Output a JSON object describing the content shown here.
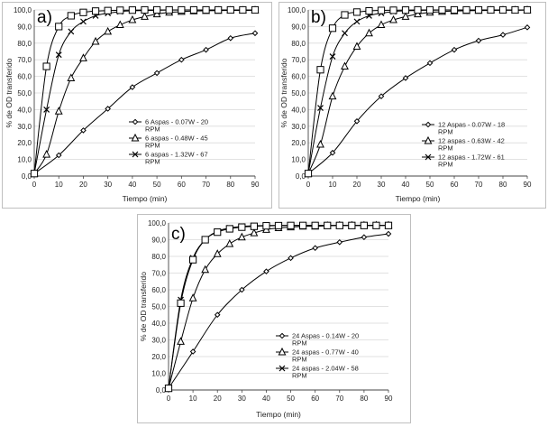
{
  "chart_data": [
    {
      "type": "line",
      "panel_label": "a)",
      "xlabel": "Tiempo (min)",
      "ylabel": "% de OD transferido",
      "x_ticks": [
        "0",
        "10",
        "20",
        "30",
        "40",
        "50",
        "60",
        "70",
        "80",
        "90"
      ],
      "y_ticks": [
        "0,0",
        "10,0",
        "20,0",
        "30,0",
        "40,0",
        "50,0",
        "60,0",
        "70,0",
        "80,0",
        "90,0",
        "100,0"
      ],
      "xlim": [
        0,
        90
      ],
      "ylim": [
        0,
        100
      ],
      "legend_position": "right",
      "series": [
        {
          "name": "6 Aspas - 0.07W - 20 RPM",
          "marker": "diamond",
          "x": [
            0,
            10,
            20,
            30,
            40,
            50,
            60,
            70,
            80,
            90
          ],
          "y": [
            1.5,
            12.5,
            27.5,
            40.5,
            53.5,
            62,
            70,
            76,
            83,
            86
          ]
        },
        {
          "name": "6 aspas - 0.48W - 45 RPM",
          "marker": "triangle",
          "x": [
            0,
            5,
            10,
            15,
            20,
            25,
            30,
            35,
            40,
            45,
            50,
            55,
            60,
            65,
            70,
            75,
            80,
            85,
            90
          ],
          "y": [
            1.5,
            13,
            39,
            59,
            71,
            81,
            87,
            91,
            94,
            96,
            97.5,
            98.5,
            99,
            99.3,
            99.5,
            99.6,
            99.7,
            99.7,
            99.8
          ]
        },
        {
          "name": "6 aspas - 1.32W - 67 RPM",
          "marker": "x",
          "x": [
            0,
            5,
            10,
            15,
            20,
            25,
            30,
            35,
            40,
            45,
            50,
            55,
            60,
            65,
            70,
            75,
            80,
            85,
            90
          ],
          "y": [
            1.5,
            40,
            73,
            87,
            93,
            96.5,
            98,
            99,
            99.5,
            99.7,
            99.8,
            99.9,
            99.9,
            100,
            100,
            100,
            100,
            100,
            100
          ]
        },
        {
          "name": "",
          "marker": "square",
          "x": [
            0,
            5,
            10,
            15,
            20,
            25,
            30,
            35,
            40,
            45,
            50,
            55,
            60,
            65,
            70,
            75,
            80,
            85,
            90
          ],
          "y": [
            1.5,
            66,
            90,
            96.5,
            98.5,
            99.3,
            99.6,
            99.8,
            99.9,
            100,
            100,
            100,
            100,
            100,
            100,
            100,
            100,
            100,
            100
          ]
        }
      ]
    },
    {
      "type": "line",
      "panel_label": "b)",
      "xlabel": "Tiempo (min)",
      "ylabel": "% de OD transferido",
      "x_ticks": [
        "0",
        "10",
        "20",
        "30",
        "40",
        "50",
        "60",
        "70",
        "80",
        "90"
      ],
      "y_ticks": [
        "0,0",
        "10,0",
        "20,0",
        "30,0",
        "40,0",
        "50,0",
        "60,0",
        "70,0",
        "80,0",
        "90,0",
        "100,0"
      ],
      "xlim": [
        0,
        90
      ],
      "ylim": [
        0,
        100
      ],
      "legend_position": "right",
      "series": [
        {
          "name": "12 Aspas - 0.07W - 18 RPM",
          "marker": "diamond",
          "x": [
            0,
            10,
            20,
            30,
            40,
            50,
            60,
            70,
            80,
            90
          ],
          "y": [
            1.5,
            14,
            33,
            48,
            59,
            68,
            76,
            81.5,
            85,
            89.5
          ]
        },
        {
          "name": "12 aspas - 0.63W - 42 RPM",
          "marker": "triangle",
          "x": [
            0,
            5,
            10,
            15,
            20,
            25,
            30,
            35,
            40,
            45,
            50,
            55,
            60,
            65,
            70,
            75,
            80,
            85,
            90
          ],
          "y": [
            1.5,
            19,
            48,
            66,
            78,
            86,
            91,
            94,
            96,
            97.5,
            98.5,
            99,
            99.3,
            99.5,
            99.6,
            99.7,
            99.8,
            99.8,
            99.9
          ]
        },
        {
          "name": "12 aspas - 1.72W - 61 RPM",
          "marker": "x",
          "x": [
            0,
            5,
            10,
            15,
            20,
            25,
            30,
            35,
            40,
            45,
            50,
            55,
            60,
            65,
            70,
            75,
            80,
            85,
            90
          ],
          "y": [
            1.5,
            41,
            72,
            86,
            93,
            96.5,
            98,
            99,
            99.5,
            99.7,
            99.8,
            99.9,
            99.9,
            100,
            100,
            100,
            100,
            100,
            100
          ]
        },
        {
          "name": "",
          "marker": "square",
          "x": [
            0,
            5,
            10,
            15,
            20,
            25,
            30,
            35,
            40,
            45,
            50,
            55,
            60,
            65,
            70,
            75,
            80,
            85,
            90
          ],
          "y": [
            1.5,
            64,
            89,
            97,
            98.7,
            99.4,
            99.7,
            99.8,
            99.9,
            100,
            100,
            100,
            100,
            100,
            100,
            100,
            100,
            100,
            100
          ]
        }
      ]
    },
    {
      "type": "line",
      "panel_label": "c)",
      "xlabel": "Tiempo (min)",
      "ylabel": "% de OD transferido",
      "x_ticks": [
        "0",
        "10",
        "20",
        "30",
        "40",
        "50",
        "60",
        "70",
        "80",
        "90"
      ],
      "y_ticks": [
        "0,0",
        "10,0",
        "20,0",
        "30,0",
        "40,0",
        "50,0",
        "60,0",
        "70,0",
        "80,0",
        "90,0",
        "100,0"
      ],
      "xlim": [
        0,
        90
      ],
      "ylim": [
        0,
        100
      ],
      "legend_position": "right",
      "series": [
        {
          "name": "24 Aspas - 0.14W - 20 RPM",
          "marker": "diamond",
          "x": [
            0,
            10,
            20,
            30,
            40,
            50,
            60,
            70,
            80,
            90
          ],
          "y": [
            1,
            23,
            45,
            60,
            71,
            79,
            85,
            88.5,
            91.5,
            93.5
          ]
        },
        {
          "name": "24 aspas - 0.77W - 40 RPM",
          "marker": "triangle",
          "x": [
            0,
            5,
            10,
            15,
            20,
            25,
            30,
            35,
            40,
            45,
            50,
            55,
            60,
            65,
            70,
            75,
            80,
            85,
            90
          ],
          "y": [
            1,
            29,
            55,
            72,
            81.5,
            87.5,
            91.5,
            94,
            96,
            97,
            97.5,
            98,
            98,
            98.3,
            98.5,
            98.5,
            98.5,
            98.6,
            98.6
          ]
        },
        {
          "name": "24 aspas - 2.04W - 58 RPM",
          "marker": "x",
          "x": [
            0,
            5,
            10,
            15,
            20,
            25,
            30,
            35,
            40,
            45,
            50,
            55,
            60,
            65,
            70,
            75,
            80,
            85,
            90
          ],
          "y": [
            1,
            54,
            79,
            90,
            95,
            97,
            98,
            98.3,
            98.5,
            98.6,
            98.6,
            98.6,
            98.6,
            98.6,
            98.6,
            98.6,
            98.6,
            98.6,
            98.6
          ]
        },
        {
          "name": "",
          "marker": "square",
          "x": [
            0,
            5,
            10,
            15,
            20,
            25,
            30,
            35,
            40,
            45,
            50,
            55,
            60,
            65,
            70,
            75,
            80,
            85,
            90
          ],
          "y": [
            1,
            52,
            78,
            90,
            94.5,
            96.5,
            97.5,
            98,
            98.3,
            98.4,
            98.5,
            98.5,
            98.5,
            98.5,
            98.5,
            98.5,
            98.5,
            98.5,
            98.5
          ]
        }
      ]
    }
  ]
}
